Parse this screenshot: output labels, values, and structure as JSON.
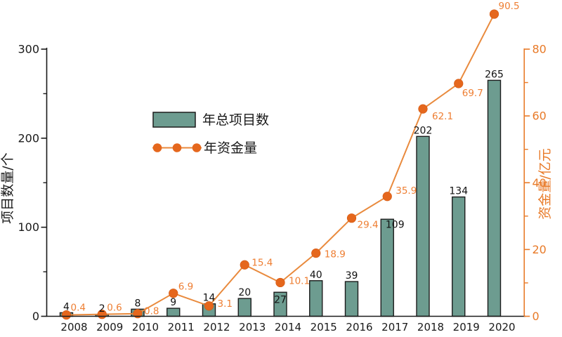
{
  "chart_data": {
    "type": "bar+line",
    "title": "",
    "categories": [
      "2008",
      "2009",
      "2010",
      "2011",
      "2012",
      "2013",
      "2014",
      "2015",
      "2016",
      "2017",
      "2018",
      "2019",
      "2020"
    ],
    "series": [
      {
        "name": "年总项目数",
        "type": "bar",
        "axis": "left",
        "values": [
          4,
          2,
          8,
          9,
          14,
          20,
          27,
          40,
          39,
          109,
          202,
          134,
          265
        ],
        "color": "#6D9C90",
        "border_color": "#1c1c1c",
        "label_color": "#111111",
        "label_pos": [
          "above",
          "above",
          "above",
          "above",
          "above",
          "above",
          "inside",
          "above",
          "above",
          "overlap-right",
          "above",
          "above",
          "above"
        ]
      },
      {
        "name": "年资金量",
        "type": "line",
        "axis": "right",
        "values": [
          0.4,
          0.6,
          0.8,
          6.9,
          3.1,
          15.4,
          10.1,
          18.9,
          29.4,
          35.9,
          62.1,
          69.7,
          90.5
        ],
        "color": "#E98A3D",
        "marker_color": "#E5671D",
        "label_color": "#EE7E32",
        "label_offsets": [
          [
            6,
            -6
          ],
          [
            7,
            -5
          ],
          [
            9,
            1
          ],
          [
            7,
            -5
          ],
          [
            12,
            1
          ],
          [
            10,
            1
          ],
          [
            12,
            2
          ],
          [
            12,
            6
          ],
          [
            8,
            14
          ],
          [
            12,
            -4
          ],
          [
            13,
            15
          ],
          [
            5,
            18
          ],
          [
            6,
            -7
          ]
        ]
      }
    ],
    "left_axis": {
      "title": "项目数量/个",
      "ticks": [
        0,
        100,
        200,
        300
      ],
      "minor_ticks": [
        50,
        150,
        250
      ],
      "range": [
        0,
        300
      ],
      "color": "#1a1a1a"
    },
    "right_axis": {
      "title": "资金量/亿元",
      "ticks": [
        0,
        20,
        40,
        60,
        80
      ],
      "minor_ticks": [
        10,
        30,
        50,
        70
      ],
      "range": [
        0,
        80
      ],
      "color": "#E87A28"
    },
    "legend": {
      "items": [
        "年总项目数",
        "年资金量"
      ],
      "position": "upper-center-left"
    },
    "grid": false
  }
}
